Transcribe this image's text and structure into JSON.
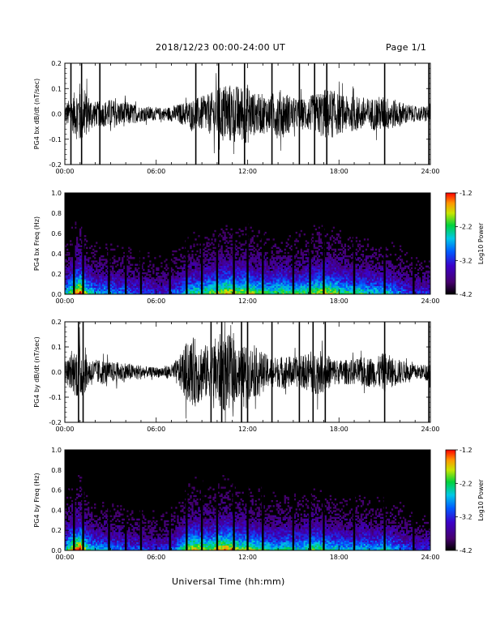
{
  "header": {
    "title": "2018/12/23  00:00-24:00 UT",
    "page": "Page 1/1"
  },
  "x_axis_label": "Universal Time (hh:mm)",
  "chart_data": [
    {
      "type": "line",
      "ylabel": "PG4 bx dB/dt (nT/sec)",
      "xlim": [
        "00:00",
        "24:00"
      ],
      "x_ticks": [
        "00:00",
        "06:00",
        "12:00",
        "18:00",
        "24:00"
      ],
      "ylim": [
        -0.2,
        0.2
      ],
      "y_ticks": [
        "-0.2",
        "-0.1",
        "0.0",
        "0.1",
        "0.2"
      ],
      "envelope_hours": [
        0,
        0.5,
        1,
        1.5,
        2,
        2.5,
        3,
        3.5,
        4,
        4.5,
        5,
        5.5,
        6,
        6.5,
        7,
        7.5,
        8,
        8.5,
        9,
        9.5,
        10,
        10.5,
        11,
        11.5,
        12,
        12.5,
        13,
        13.5,
        14,
        14.5,
        15,
        15.5,
        16,
        16.5,
        17,
        17.5,
        18,
        18.5,
        19,
        19.5,
        20,
        20.5,
        21,
        21.5,
        22,
        22.5,
        23,
        23.5,
        24
      ],
      "envelope_amplitude": [
        0.04,
        0.07,
        0.13,
        0.08,
        0.05,
        0.05,
        0.06,
        0.05,
        0.05,
        0.04,
        0.03,
        0.03,
        0.025,
        0.025,
        0.03,
        0.04,
        0.05,
        0.06,
        0.07,
        0.08,
        0.1,
        0.12,
        0.12,
        0.11,
        0.12,
        0.08,
        0.08,
        0.07,
        0.1,
        0.09,
        0.06,
        0.06,
        0.07,
        0.08,
        0.1,
        0.1,
        0.08,
        0.07,
        0.07,
        0.07,
        0.06,
        0.07,
        0.07,
        0.06,
        0.05,
        0.04,
        0.03,
        0.03,
        0.04
      ],
      "spikes_hours": [
        0.4,
        1.1,
        2.3,
        8.6,
        10.1,
        11.8,
        13.6,
        15.4,
        16.4,
        17.2,
        21.0,
        23.9
      ]
    },
    {
      "type": "heatmap",
      "ylabel": "PG4 bx Freq (Hz)",
      "xlim": [
        "00:00",
        "24:00"
      ],
      "x_ticks": [
        "00:00",
        "06:00",
        "12:00",
        "18:00",
        "24:00"
      ],
      "ylim": [
        0.0,
        1.0
      ],
      "y_ticks": [
        "0.0",
        "0.2",
        "0.4",
        "0.6",
        "0.8",
        "1.0"
      ],
      "colorbar": {
        "label": "Log10 Power",
        "ticks": [
          "-1.2",
          "-2.2",
          "-3.2",
          "-4.2"
        ],
        "range": [
          -4.2,
          -1.2
        ]
      },
      "activity_hours": [
        0,
        0.5,
        1,
        1.5,
        2,
        2.5,
        3,
        3.5,
        4,
        4.5,
        5,
        5.5,
        6,
        6.5,
        7,
        7.5,
        8,
        8.5,
        9,
        9.5,
        10,
        10.5,
        11,
        11.5,
        12,
        12.5,
        13,
        13.5,
        14,
        14.5,
        15,
        15.5,
        16,
        16.5,
        17,
        17.5,
        18,
        18.5,
        19,
        19.5,
        20,
        20.5,
        21,
        21.5,
        22,
        22.5,
        23,
        23.5,
        24
      ],
      "activity": [
        0.5,
        0.7,
        0.9,
        0.6,
        0.5,
        0.5,
        0.5,
        0.45,
        0.45,
        0.4,
        0.4,
        0.4,
        0.35,
        0.35,
        0.4,
        0.45,
        0.55,
        0.6,
        0.6,
        0.65,
        0.7,
        0.75,
        0.75,
        0.7,
        0.75,
        0.65,
        0.65,
        0.6,
        0.65,
        0.65,
        0.6,
        0.6,
        0.65,
        0.7,
        0.75,
        0.7,
        0.65,
        0.6,
        0.6,
        0.6,
        0.55,
        0.55,
        0.55,
        0.5,
        0.45,
        0.4,
        0.35,
        0.35,
        0.4
      ],
      "gap_hours": [
        0.6,
        1.2,
        2.9,
        4.0,
        5.0,
        6.9,
        8.0,
        9.0,
        10.0,
        11.1,
        12.0,
        13.0,
        15.0,
        16.1,
        17.0,
        19.0,
        21.0,
        22.9
      ]
    },
    {
      "type": "line",
      "ylabel": "PG4 by dB/dt (nT/sec)",
      "xlim": [
        "00:00",
        "24:00"
      ],
      "x_ticks": [
        "00:00",
        "06:00",
        "12:00",
        "18:00",
        "24:00"
      ],
      "ylim": [
        -0.2,
        0.2
      ],
      "y_ticks": [
        "-0.2",
        "-0.1",
        "0.0",
        "0.1",
        "0.2"
      ],
      "envelope_hours": [
        0,
        0.5,
        1,
        1.5,
        2,
        2.5,
        3,
        3.5,
        4,
        4.5,
        5,
        5.5,
        6,
        6.5,
        7,
        7.5,
        8,
        8.5,
        9,
        9.5,
        10,
        10.5,
        11,
        11.5,
        12,
        12.5,
        13,
        13.5,
        14,
        14.5,
        15,
        15.5,
        16,
        16.5,
        17,
        17.5,
        18,
        18.5,
        19,
        19.5,
        20,
        20.5,
        21,
        21.5,
        22,
        22.5,
        23,
        23.5,
        24
      ],
      "envelope_amplitude": [
        0.04,
        0.08,
        0.12,
        0.06,
        0.05,
        0.05,
        0.04,
        0.04,
        0.04,
        0.03,
        0.03,
        0.02,
        0.02,
        0.025,
        0.03,
        0.06,
        0.12,
        0.14,
        0.12,
        0.1,
        0.15,
        0.16,
        0.14,
        0.1,
        0.11,
        0.1,
        0.08,
        0.06,
        0.06,
        0.07,
        0.06,
        0.06,
        0.08,
        0.09,
        0.08,
        0.06,
        0.05,
        0.05,
        0.05,
        0.06,
        0.06,
        0.06,
        0.08,
        0.06,
        0.05,
        0.04,
        0.03,
        0.03,
        0.04
      ],
      "spikes_hours": [
        0.9,
        1.2,
        9.6,
        10.3,
        11.6,
        12.0,
        13.6,
        15.4,
        16.3,
        17.1,
        21.0,
        23.9
      ]
    },
    {
      "type": "heatmap",
      "ylabel": "PG4 by Freq (Hz)",
      "xlim": [
        "00:00",
        "24:00"
      ],
      "x_ticks": [
        "00:00",
        "06:00",
        "12:00",
        "18:00",
        "24:00"
      ],
      "ylim": [
        0.0,
        1.0
      ],
      "y_ticks": [
        "0.0",
        "0.2",
        "0.4",
        "0.6",
        "0.8",
        "1.0"
      ],
      "colorbar": {
        "label": "Log10 Power",
        "ticks": [
          "-1.2",
          "-2.2",
          "-3.2",
          "-4.2"
        ],
        "range": [
          -4.2,
          -1.2
        ]
      },
      "activity_hours": [
        0,
        0.5,
        1,
        1.5,
        2,
        2.5,
        3,
        3.5,
        4,
        4.5,
        5,
        5.5,
        6,
        6.5,
        7,
        7.5,
        8,
        8.5,
        9,
        9.5,
        10,
        10.5,
        11,
        11.5,
        12,
        12.5,
        13,
        13.5,
        14,
        14.5,
        15,
        15.5,
        16,
        16.5,
        17,
        17.5,
        18,
        18.5,
        19,
        19.5,
        20,
        20.5,
        21,
        21.5,
        22,
        22.5,
        23,
        23.5,
        24
      ],
      "activity": [
        0.5,
        0.75,
        0.85,
        0.6,
        0.5,
        0.5,
        0.45,
        0.45,
        0.4,
        0.4,
        0.4,
        0.35,
        0.35,
        0.35,
        0.4,
        0.5,
        0.7,
        0.75,
        0.7,
        0.65,
        0.75,
        0.8,
        0.75,
        0.65,
        0.7,
        0.65,
        0.6,
        0.55,
        0.55,
        0.6,
        0.55,
        0.55,
        0.6,
        0.65,
        0.6,
        0.55,
        0.55,
        0.5,
        0.5,
        0.55,
        0.5,
        0.5,
        0.55,
        0.5,
        0.45,
        0.4,
        0.35,
        0.35,
        0.4
      ],
      "gap_hours": [
        0.6,
        1.2,
        2.9,
        4.0,
        5.0,
        6.9,
        8.0,
        9.0,
        10.0,
        11.1,
        12.0,
        13.0,
        15.0,
        16.1,
        17.0,
        19.0,
        21.0,
        22.9
      ]
    }
  ]
}
